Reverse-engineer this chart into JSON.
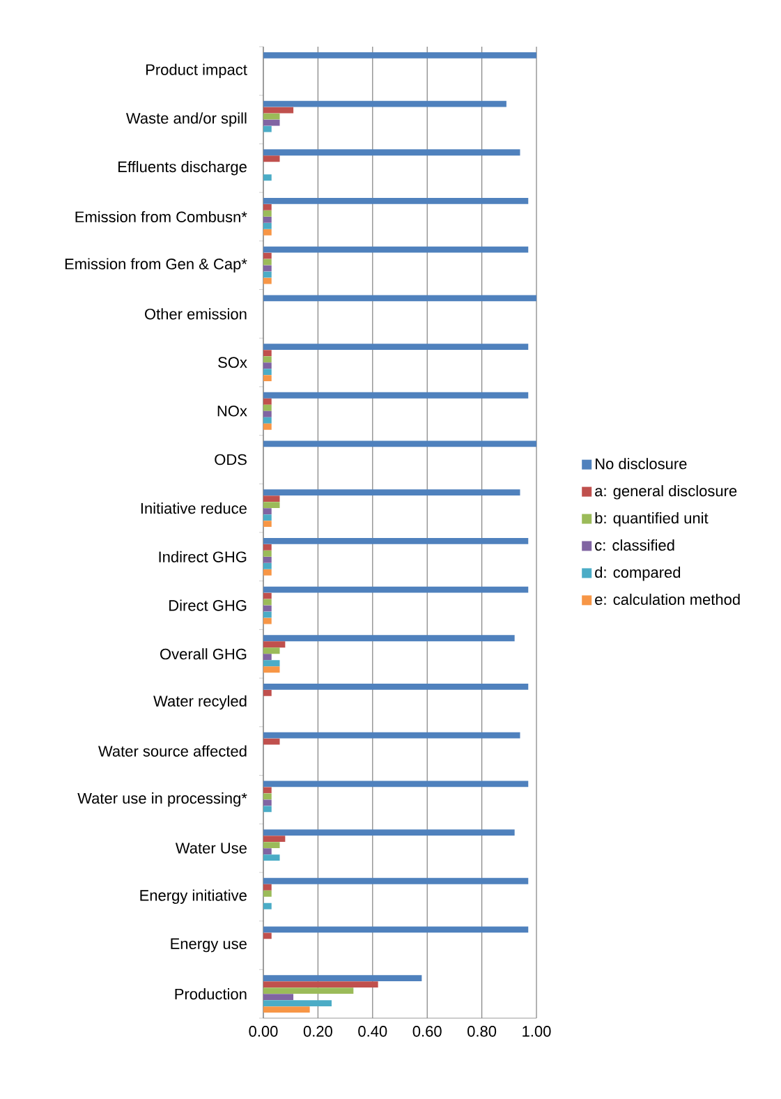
{
  "chart_data": {
    "type": "bar",
    "orientation": "horizontal",
    "categories": [
      "Product impact",
      "Waste and/or spill",
      "Effluents discharge",
      "Emission from Combusn*",
      "Emission from Gen & Cap*",
      "Other emission",
      "SOx",
      "NOx",
      "ODS",
      "Initiative reduce",
      "Indirect GHG",
      "Direct GHG",
      "Overall GHG",
      "Water recyled",
      "Water source affected",
      "Water use in processing*",
      "Water Use",
      "Energy initiative",
      "Energy use",
      "Production"
    ],
    "series": [
      {
        "name": "No disclosure",
        "color": "#4f81bd",
        "values": [
          1,
          0.89,
          0.94,
          0.97,
          0.97,
          1,
          0.97,
          0.97,
          1,
          0.94,
          0.97,
          0.97,
          0.92,
          0.97,
          0.94,
          0.97,
          0.92,
          0.97,
          0.97,
          0.58
        ]
      },
      {
        "name": "a: general disclosure",
        "color": "#c0504d",
        "values": [
          0,
          0.11,
          0.06,
          0.03,
          0.03,
          0,
          0.03,
          0.03,
          0,
          0.06,
          0.03,
          0.03,
          0.08,
          0.03,
          0.06,
          0.03,
          0.08,
          0.03,
          0.03,
          0.42
        ]
      },
      {
        "name": "b: quantified unit",
        "color": "#9bbb59",
        "values": [
          0,
          0.06,
          0,
          0.03,
          0.03,
          0,
          0.03,
          0.03,
          0,
          0.06,
          0.03,
          0.03,
          0.06,
          0,
          0,
          0.03,
          0.06,
          0.03,
          0,
          0.33
        ]
      },
      {
        "name": "c: classified",
        "color": "#8064a2",
        "values": [
          0,
          0.06,
          0,
          0.03,
          0.03,
          0,
          0.03,
          0.03,
          0,
          0.03,
          0.03,
          0.03,
          0.03,
          0,
          0,
          0.03,
          0.03,
          0,
          0,
          0.11
        ]
      },
      {
        "name": "d: compared",
        "color": "#4bacc6",
        "values": [
          0,
          0.03,
          0.03,
          0.03,
          0.03,
          0,
          0.03,
          0.03,
          0,
          0.03,
          0.03,
          0.03,
          0.06,
          0,
          0,
          0.03,
          0.06,
          0.03,
          0,
          0.25
        ]
      },
      {
        "name": "e: calculation method",
        "color": "#f79646",
        "values": [
          0,
          0,
          0,
          0.03,
          0.03,
          0,
          0.03,
          0.03,
          0,
          0.03,
          0.03,
          0.03,
          0.06,
          0,
          0,
          0,
          0,
          0,
          0,
          0.17
        ]
      }
    ],
    "xlim": [
      0,
      1
    ],
    "xticks": [
      {
        "value": 0,
        "label": "0.00"
      },
      {
        "value": 0.2,
        "label": "0.20"
      },
      {
        "value": 0.4,
        "label": "0.40"
      },
      {
        "value": 0.6,
        "label": "0.60"
      },
      {
        "value": 0.8,
        "label": "0.80"
      },
      {
        "value": 1,
        "label": "1.00"
      }
    ],
    "grid": "x",
    "legend": "right"
  }
}
